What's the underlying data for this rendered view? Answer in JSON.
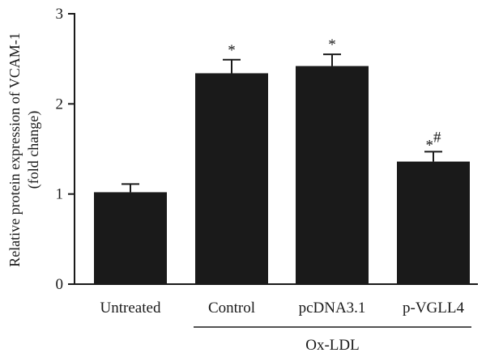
{
  "chart_data": {
    "type": "bar",
    "categories": [
      "Untreated",
      "Control",
      "pcDNA3.1",
      "p-VGLL4"
    ],
    "values": [
      1.02,
      2.34,
      2.42,
      1.36
    ],
    "errors": [
      0.09,
      0.15,
      0.13,
      0.11
    ],
    "annotations": [
      "",
      "*",
      "*",
      "*#"
    ],
    "ylabel": "Relative protein expression of VCAM-1 (fold change)",
    "ylabel_lines": [
      "Relative protein expression of VCAM-1",
      "(fold change)"
    ],
    "xlabel": "",
    "ylim": [
      0,
      3
    ],
    "yticks": [
      "0",
      "1",
      "2",
      "3"
    ],
    "group": {
      "label": "Ox-LDL",
      "categories": [
        "Control",
        "pcDNA3.1",
        "p-VGLL4"
      ]
    },
    "bar_color": "#1a1a1a",
    "grid": false,
    "legend": "none"
  }
}
